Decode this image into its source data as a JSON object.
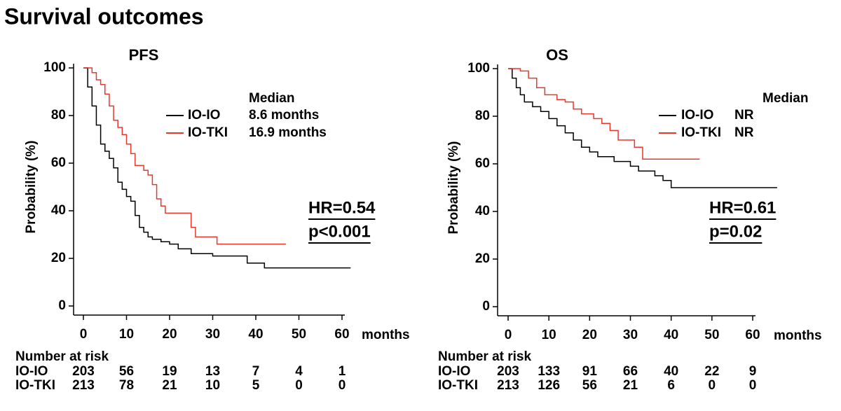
{
  "title": "Survival outcomes",
  "chart_data": [
    {
      "type": "line",
      "title": "PFS",
      "ylabel": "Probability (%)",
      "xlabel": "months",
      "xlim": [
        0,
        60
      ],
      "ylim": [
        0,
        100
      ],
      "xticks": [
        0,
        10,
        20,
        30,
        40,
        50,
        60
      ],
      "yticks": [
        0,
        20,
        40,
        60,
        80,
        100
      ],
      "legend_title": "Median",
      "series": [
        {
          "name": "IO-IO",
          "color": "#000000",
          "median": "8.6 months",
          "x": [
            0,
            1,
            2,
            3,
            4,
            5,
            6,
            7,
            8,
            9,
            10,
            11,
            12,
            13,
            14,
            15,
            16,
            18,
            20,
            22,
            25,
            30,
            38,
            42,
            62
          ],
          "values": [
            100,
            92,
            84,
            76,
            68,
            65,
            62,
            58,
            52,
            49,
            46,
            44,
            38,
            33,
            31,
            29,
            28,
            27,
            26,
            24,
            22,
            21,
            18,
            16,
            16
          ]
        },
        {
          "name": "IO-TKI",
          "color": "#e8382b",
          "median": "16.9 months",
          "x": [
            0,
            2,
            3,
            4,
            5,
            6,
            7,
            8,
            9,
            10,
            11,
            12,
            14,
            15,
            16,
            17,
            18,
            19,
            25,
            26,
            31,
            47
          ],
          "values": [
            100,
            98,
            95,
            93,
            89,
            84,
            78,
            75,
            72,
            68,
            64,
            59,
            57,
            55,
            51,
            45,
            42,
            39,
            33,
            29,
            26,
            26
          ]
        }
      ],
      "annotations": [
        "HR=0.54",
        "p<0.001"
      ],
      "risk_table": {
        "title": "Number at risk",
        "rows": [
          {
            "name": "IO-IO",
            "values": [
              203,
              56,
              19,
              13,
              7,
              4,
              1
            ]
          },
          {
            "name": "IO-TKI",
            "values": [
              213,
              78,
              21,
              10,
              5,
              0,
              0
            ]
          }
        ]
      }
    },
    {
      "type": "line",
      "title": "OS",
      "ylabel": "Probability (%)",
      "xlabel": "months",
      "xlim": [
        0,
        60
      ],
      "ylim": [
        0,
        100
      ],
      "xticks": [
        0,
        10,
        20,
        30,
        40,
        50,
        60
      ],
      "yticks": [
        0,
        20,
        40,
        60,
        80,
        100
      ],
      "legend_title": "Median",
      "series": [
        {
          "name": "IO-IO",
          "color": "#000000",
          "median": "NR",
          "x": [
            0,
            1,
            2,
            3,
            4,
            6,
            8,
            10,
            12,
            14,
            16,
            18,
            20,
            22,
            26,
            30,
            32,
            36,
            38,
            40,
            66
          ],
          "values": [
            100,
            96,
            92,
            89,
            86,
            84,
            82,
            79,
            76,
            73,
            70,
            67,
            65,
            63,
            61,
            59,
            57,
            55,
            53,
            50,
            50
          ]
        },
        {
          "name": "IO-TKI",
          "color": "#e8382b",
          "median": "NR",
          "x": [
            0,
            3,
            5,
            7,
            9,
            12,
            14,
            16,
            18,
            21,
            23,
            25,
            27,
            31,
            33,
            47
          ],
          "values": [
            100,
            99,
            96,
            92,
            89,
            87,
            86,
            83,
            81,
            79,
            77,
            74,
            70,
            67,
            62,
            62
          ]
        }
      ],
      "annotations": [
        "HR=0.61",
        "p=0.02"
      ],
      "risk_table": {
        "title": "Number at risk",
        "rows": [
          {
            "name": "IO-IO",
            "values": [
              203,
              133,
              91,
              66,
              40,
              22,
              9
            ]
          },
          {
            "name": "IO-TKI",
            "values": [
              213,
              126,
              56,
              21,
              6,
              0,
              0
            ]
          }
        ]
      }
    }
  ]
}
